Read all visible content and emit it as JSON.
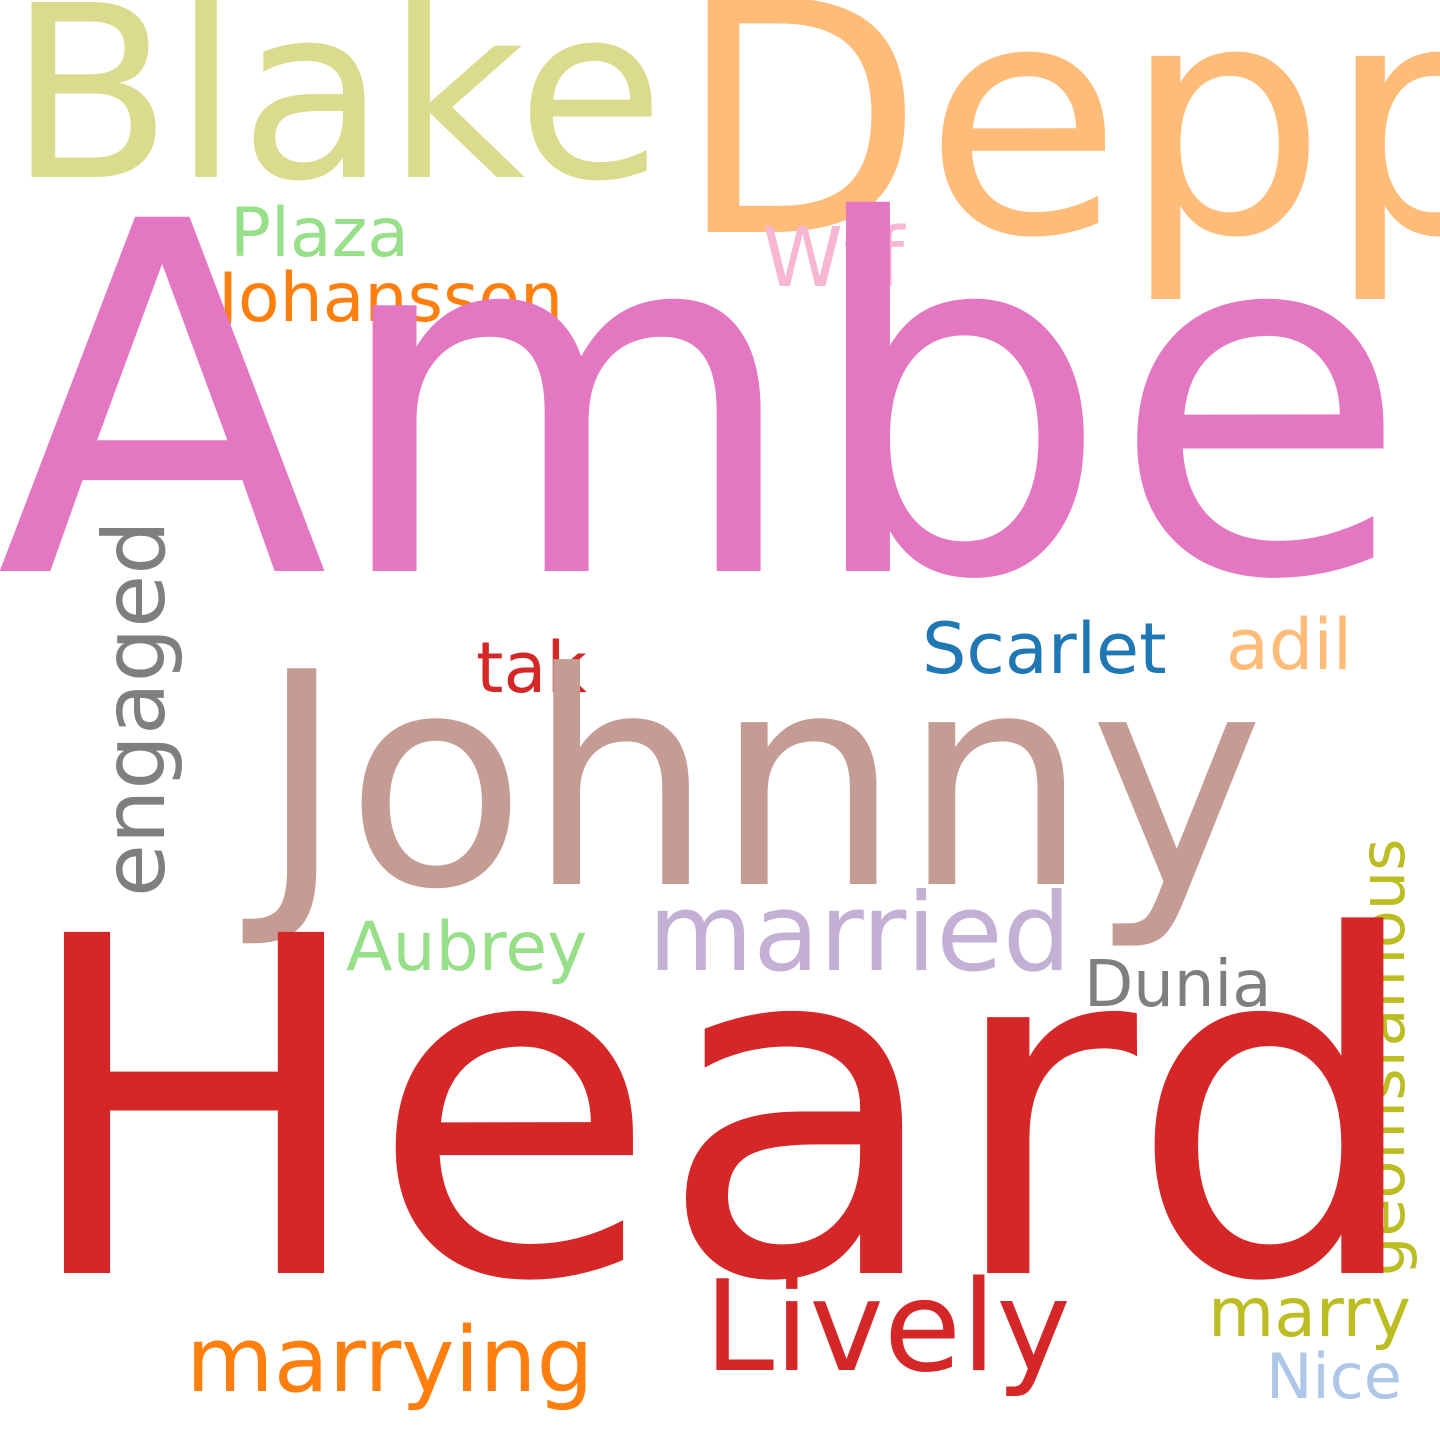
{
  "words": {
    "amber": {
      "text": "Amber",
      "color": "#e377c2"
    },
    "heard": {
      "text": "Heard",
      "color": "#d62728"
    },
    "johnny": {
      "text": "Johnny",
      "color": "#c49c94"
    },
    "depp": {
      "text": "Depp",
      "color": "#ffbb78"
    },
    "blake": {
      "text": "Blake",
      "color": "#dbdb8d"
    },
    "lively": {
      "text": "Lively",
      "color": "#d62728"
    },
    "married": {
      "text": "married",
      "color": "#c5b0d5"
    },
    "marrying": {
      "text": "marrying",
      "color": "#ff7f0e"
    },
    "engaged": {
      "text": "engaged",
      "color": "#7f7f7f"
    },
    "geoffisfamous": {
      "text": "geoffisfamous",
      "color": "#bcbd22"
    },
    "scarlet": {
      "text": "Scarlet",
      "color": "#1f77b4"
    },
    "johansson": {
      "text": "Johansson",
      "color": "#ff7f0e"
    },
    "plaza": {
      "text": "Plaza",
      "color": "#98df8a"
    },
    "wtf": {
      "text": "Wtf",
      "color": "#f7b6d2"
    },
    "aubrey": {
      "text": "Aubrey",
      "color": "#98df8a"
    },
    "dunia": {
      "text": "Dunia",
      "color": "#7f7f7f"
    },
    "adil": {
      "text": "adil",
      "color": "#ffbb78"
    },
    "tak": {
      "text": "tak",
      "color": "#d62728"
    },
    "marry": {
      "text": "marry",
      "color": "#bcbd22"
    },
    "nice": {
      "text": "Nice",
      "color": "#aec7e8"
    }
  }
}
